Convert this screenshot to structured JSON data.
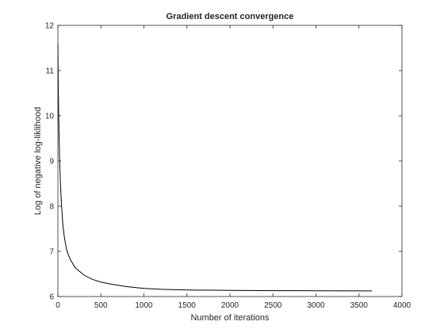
{
  "chart_data": {
    "type": "line",
    "title": "Gradient descent convergence",
    "xlabel": "Number of iterations",
    "ylabel": "Log of negative log-liklihood",
    "xlim": [
      0,
      4000
    ],
    "ylim": [
      6,
      12
    ],
    "xticks": [
      0,
      500,
      1000,
      1500,
      2000,
      2500,
      3000,
      3500,
      4000
    ],
    "yticks": [
      6,
      7,
      8,
      9,
      10,
      11,
      12
    ],
    "xtick_labels": [
      "0",
      "500",
      "1000",
      "1500",
      "2000",
      "2500",
      "3000",
      "3500",
      "4000"
    ],
    "ytick_labels": [
      "6",
      "7",
      "8",
      "9",
      "10",
      "11",
      "12"
    ],
    "grid": false,
    "line_color": "#000000",
    "series": [
      {
        "x": [
          0,
          5,
          10,
          15,
          20,
          30,
          40,
          50,
          60,
          75,
          90,
          100,
          120,
          150,
          200,
          250,
          300,
          400,
          500,
          600,
          700,
          800,
          1000,
          1200,
          1500,
          2000,
          2500,
          3000,
          3500,
          3650
        ],
        "y": [
          11.6,
          10.6,
          9.95,
          9.45,
          9.05,
          8.5,
          8.1,
          7.8,
          7.55,
          7.32,
          7.15,
          7.05,
          6.93,
          6.8,
          6.64,
          6.56,
          6.48,
          6.38,
          6.32,
          6.28,
          6.25,
          6.22,
          6.18,
          6.16,
          6.145,
          6.135,
          6.13,
          6.128,
          6.126,
          6.125
        ]
      }
    ]
  }
}
